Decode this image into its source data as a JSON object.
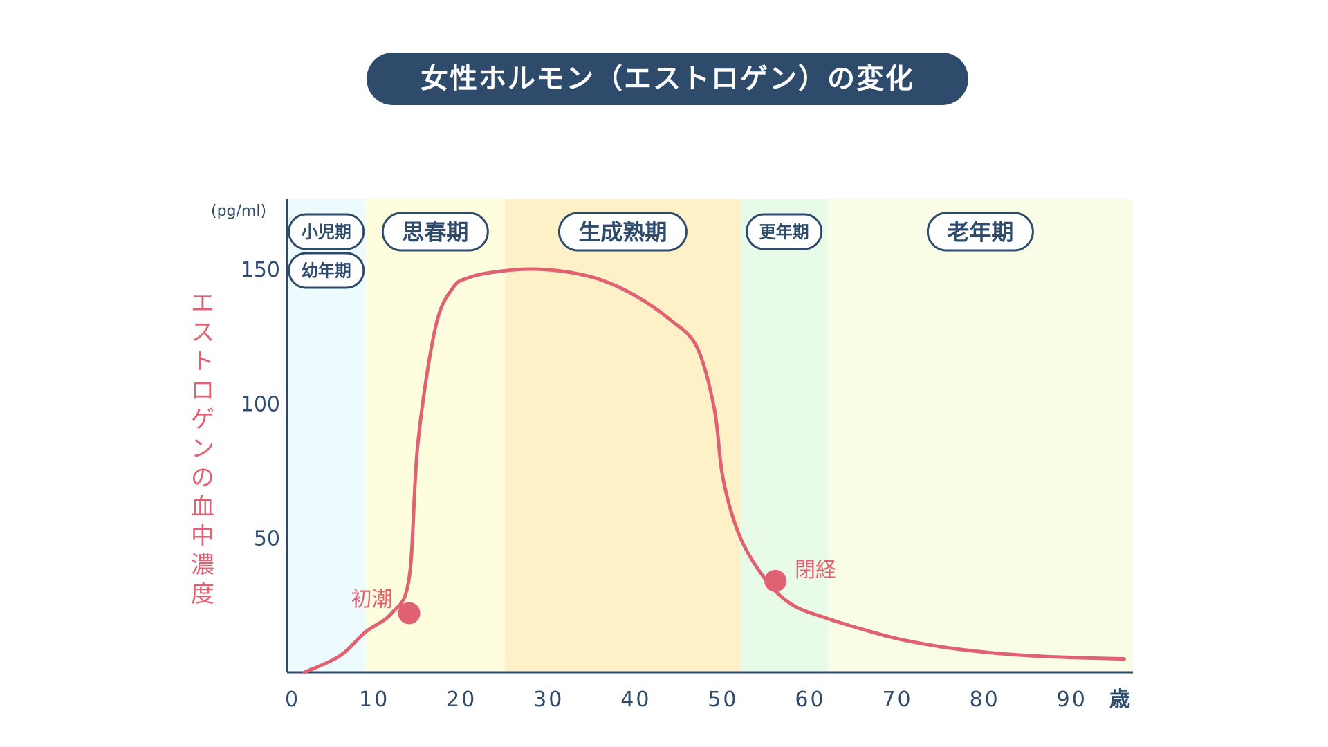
{
  "chart_data": {
    "type": "line",
    "title": "女性ホルモン（エストロゲン）の変化",
    "ylabel": "エストロゲンの血中濃度",
    "unit": "(pg/ml)",
    "xlabel": "",
    "x_unit": "歳",
    "xlim": [
      0,
      97
    ],
    "ylim": [
      0,
      176
    ],
    "x_ticks": [
      "0",
      "10",
      "20",
      "30",
      "40",
      "50",
      "60",
      "70",
      "80",
      "90"
    ],
    "y_ticks": [
      "50",
      "100",
      "150"
    ],
    "grid": false,
    "series": [
      {
        "color": "#e06272",
        "x": [
          2,
          6,
          9,
          12,
          14,
          15,
          17,
          19,
          21,
          24,
          28,
          32,
          36,
          40,
          44,
          47,
          49,
          50,
          52,
          55,
          58,
          62,
          66,
          70,
          75,
          80,
          85,
          90,
          96
        ],
        "y": [
          0,
          6,
          15,
          22,
          35,
          85,
          128,
          143,
          147,
          149,
          150,
          149,
          146,
          140,
          131,
          121,
          98,
          72,
          50,
          34,
          25,
          20,
          16,
          12.5,
          9.5,
          7.5,
          6.2,
          5.5,
          5
        ]
      }
    ],
    "stages": [
      {
        "label_lines": [
          "小児期",
          "幼年期"
        ],
        "start": 0,
        "end": 9,
        "color": "#eefbfe"
      },
      {
        "label_lines": [
          "思春期"
        ],
        "start": 9,
        "end": 25,
        "color": "#fefdde"
      },
      {
        "label_lines": [
          "生成熟期"
        ],
        "start": 25,
        "end": 52,
        "color": "#fef1c8"
      },
      {
        "label_lines": [
          "更年期"
        ],
        "start": 52,
        "end": 62,
        "color": "#e8fbe9"
      },
      {
        "label_lines": [
          "老年期"
        ],
        "start": 62,
        "end": 97,
        "color": "#f9fde6"
      }
    ],
    "annotations": [
      {
        "label": "初潮",
        "x": 14,
        "y": 22
      },
      {
        "label": "閉経",
        "x": 56,
        "y": 34
      }
    ]
  },
  "colors": {
    "title_bg": "#2f4b6c",
    "axis": "#2f4b6c",
    "curve": "#e06272",
    "ylabel": "#e06272"
  }
}
